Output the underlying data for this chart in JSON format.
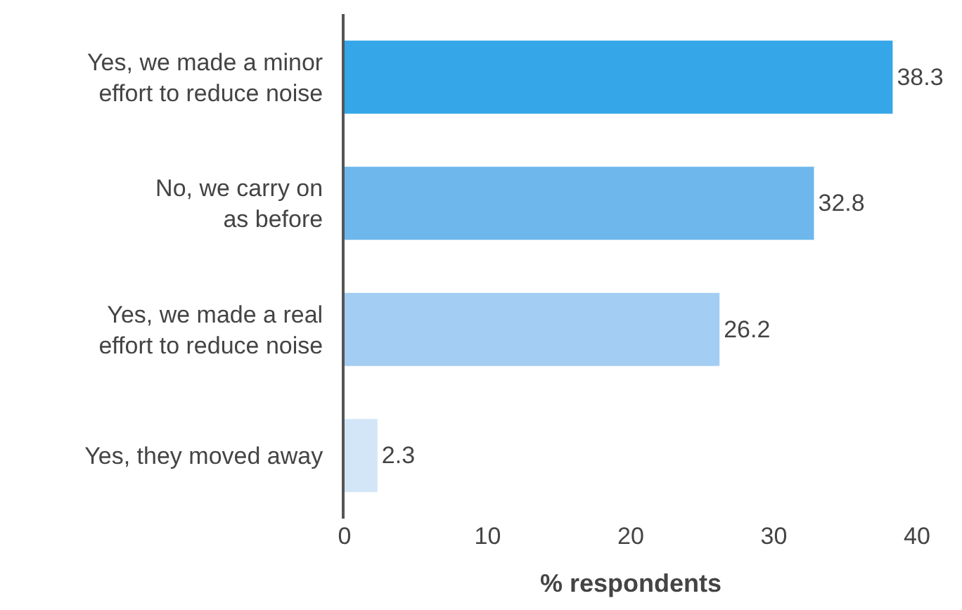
{
  "chart_data": {
    "type": "bar",
    "orientation": "horizontal",
    "xlabel": "% respondents",
    "categories": [
      "Yes, we made a minor\neffort to reduce noise",
      "No, we carry on\nas before",
      "Yes, we made a real\neffort to reduce noise",
      "Yes, they moved away"
    ],
    "values": [
      38.3,
      32.8,
      26.2,
      2.3
    ],
    "colors": [
      "#35a6e8",
      "#6db7ec",
      "#a3cdf2",
      "#d3e6f8"
    ],
    "xlim": [
      0,
      40
    ],
    "xticks": [
      0,
      10,
      20,
      30,
      40
    ],
    "data_labels": true,
    "grid": false
  }
}
